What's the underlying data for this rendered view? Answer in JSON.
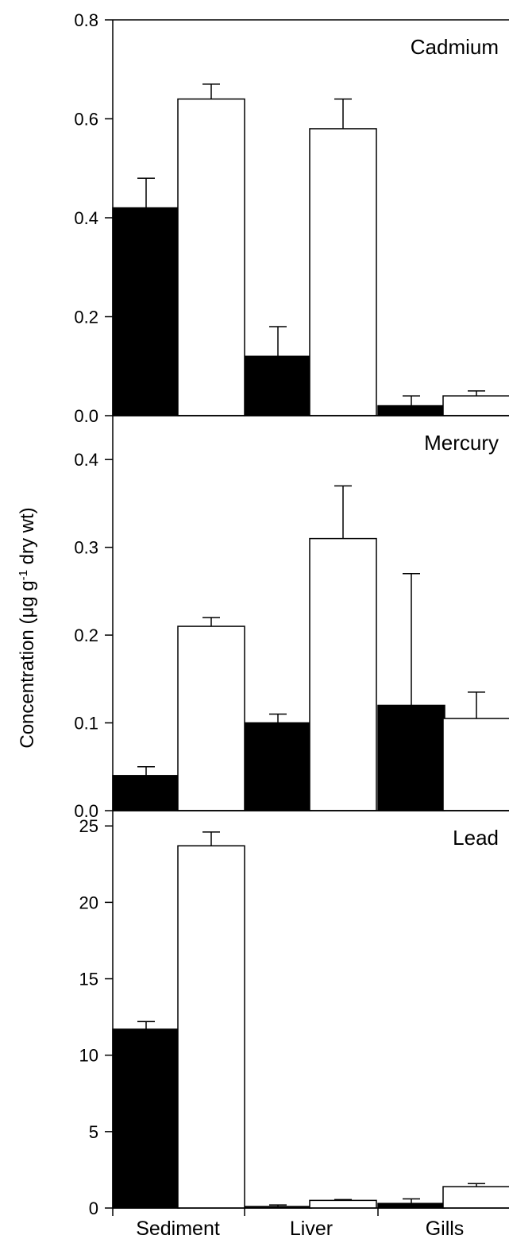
{
  "chart_data": [
    {
      "type": "bar",
      "title": "Cadmium",
      "categories": [
        "Sediment",
        "Liver",
        "Gills"
      ],
      "ylim": [
        0,
        0.8
      ],
      "yticks": [
        0.0,
        0.2,
        0.4,
        0.6,
        0.8
      ],
      "ytick_labels": [
        "0.0",
        "0.2",
        "0.4",
        "0.6",
        "0.8"
      ],
      "series": [
        {
          "fill": "#000000",
          "values": [
            0.42,
            0.12,
            0.02
          ],
          "errors": [
            0.06,
            0.06,
            0.02
          ]
        },
        {
          "fill": "#ffffff",
          "values": [
            0.64,
            0.58,
            0.04
          ],
          "errors": [
            0.03,
            0.06,
            0.01
          ]
        }
      ]
    },
    {
      "type": "bar",
      "title": "Mercury",
      "categories": [
        "Sediment",
        "Liver",
        "Gills"
      ],
      "ylim": [
        0,
        0.45
      ],
      "yticks": [
        0.0,
        0.1,
        0.2,
        0.3,
        0.4
      ],
      "ytick_labels": [
        "0.0",
        "0.1",
        "0.2",
        "0.3",
        "0.4"
      ],
      "series": [
        {
          "fill": "#000000",
          "values": [
            0.04,
            0.1,
            0.12
          ],
          "errors": [
            0.01,
            0.01,
            0.15
          ]
        },
        {
          "fill": "#ffffff",
          "values": [
            0.21,
            0.31,
            0.105
          ],
          "errors": [
            0.01,
            0.06,
            0.03
          ]
        }
      ]
    },
    {
      "type": "bar",
      "title": "Lead",
      "categories": [
        "Sediment",
        "Liver",
        "Gills"
      ],
      "ylim": [
        0,
        26
      ],
      "yticks": [
        0,
        5,
        10,
        15,
        20,
        25
      ],
      "ytick_labels": [
        "0",
        "5",
        "10",
        "15",
        "20",
        "25"
      ],
      "series": [
        {
          "fill": "#000000",
          "values": [
            11.7,
            0.1,
            0.3
          ],
          "errors": [
            0.5,
            0.1,
            0.3
          ]
        },
        {
          "fill": "#ffffff",
          "values": [
            23.7,
            0.5,
            1.4
          ],
          "errors": [
            0.9,
            0.05,
            0.2
          ]
        }
      ]
    }
  ],
  "ylabel_main": "Concentration (μg g",
  "ylabel_sup": "-1",
  "ylabel_tail": " dry wt)",
  "category_labels": [
    "Sediment",
    "Liver",
    "Gills"
  ]
}
